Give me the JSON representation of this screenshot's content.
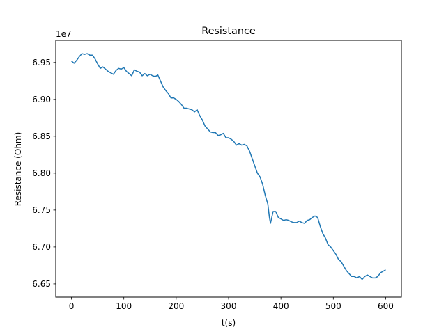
{
  "chart_data": {
    "type": "line",
    "title": "Resistance",
    "xlabel": "t(s)",
    "ylabel": "Resistance (Ohm)",
    "y_offset_label": "1e7",
    "xlim": [
      -30,
      630
    ],
    "ylim": [
      6.632,
      6.98
    ],
    "y_scale_factor": 10000000,
    "x_ticks": [
      0,
      100,
      200,
      300,
      400,
      500,
      600
    ],
    "x_tick_labels": [
      "0",
      "100",
      "200",
      "300",
      "400",
      "500",
      "600"
    ],
    "y_ticks": [
      6.65,
      6.7,
      6.75,
      6.8,
      6.85,
      6.9,
      6.95
    ],
    "y_tick_labels": [
      "6.65",
      "6.70",
      "6.75",
      "6.80",
      "6.85",
      "6.90",
      "6.95"
    ],
    "grid": false,
    "series": [
      {
        "color": "#1f77b4",
        "x": [
          0,
          5,
          10,
          15,
          20,
          25,
          30,
          35,
          40,
          45,
          50,
          55,
          60,
          65,
          70,
          75,
          80,
          85,
          90,
          95,
          100,
          105,
          110,
          115,
          120,
          125,
          130,
          135,
          140,
          145,
          150,
          155,
          160,
          165,
          170,
          175,
          180,
          185,
          190,
          195,
          200,
          205,
          210,
          215,
          220,
          225,
          230,
          235,
          240,
          245,
          250,
          255,
          260,
          265,
          270,
          275,
          280,
          285,
          290,
          295,
          300,
          305,
          310,
          315,
          320,
          325,
          330,
          335,
          340,
          345,
          350,
          355,
          360,
          365,
          370,
          375,
          378,
          380,
          385,
          390,
          395,
          400,
          405,
          410,
          415,
          420,
          425,
          430,
          435,
          440,
          445,
          450,
          455,
          460,
          465,
          470,
          475,
          480,
          485,
          490,
          495,
          500,
          505,
          510,
          515,
          520,
          525,
          530,
          535,
          540,
          545,
          550,
          555,
          560,
          565,
          570,
          575,
          580,
          585,
          590,
          595,
          600
        ],
        "y": [
          6.952,
          6.949,
          6.953,
          6.958,
          6.962,
          6.961,
          6.962,
          6.96,
          6.96,
          6.955,
          6.948,
          6.942,
          6.944,
          6.941,
          6.938,
          6.936,
          6.934,
          6.939,
          6.942,
          6.941,
          6.943,
          6.938,
          6.935,
          6.932,
          6.94,
          6.938,
          6.937,
          6.932,
          6.935,
          6.932,
          6.934,
          6.932,
          6.931,
          6.933,
          6.925,
          6.917,
          6.912,
          6.908,
          6.902,
          6.902,
          6.9,
          6.897,
          6.893,
          6.888,
          6.888,
          6.887,
          6.886,
          6.883,
          6.886,
          6.878,
          6.872,
          6.864,
          6.86,
          6.856,
          6.855,
          6.855,
          6.851,
          6.852,
          6.854,
          6.848,
          6.848,
          6.846,
          6.843,
          6.838,
          6.84,
          6.838,
          6.839,
          6.837,
          6.83,
          6.82,
          6.81,
          6.8,
          6.795,
          6.785,
          6.77,
          6.758,
          6.74,
          6.732,
          6.748,
          6.748,
          6.74,
          6.738,
          6.736,
          6.737,
          6.736,
          6.734,
          6.733,
          6.733,
          6.735,
          6.733,
          6.732,
          6.736,
          6.737,
          6.74,
          6.742,
          6.74,
          6.728,
          6.718,
          6.712,
          6.703,
          6.7,
          6.695,
          6.69,
          6.683,
          6.68,
          6.674,
          6.668,
          6.664,
          6.66,
          6.66,
          6.658,
          6.66,
          6.656,
          6.66,
          6.662,
          6.66,
          6.658,
          6.658,
          6.66,
          6.665,
          6.667,
          6.669
        ]
      }
    ]
  }
}
